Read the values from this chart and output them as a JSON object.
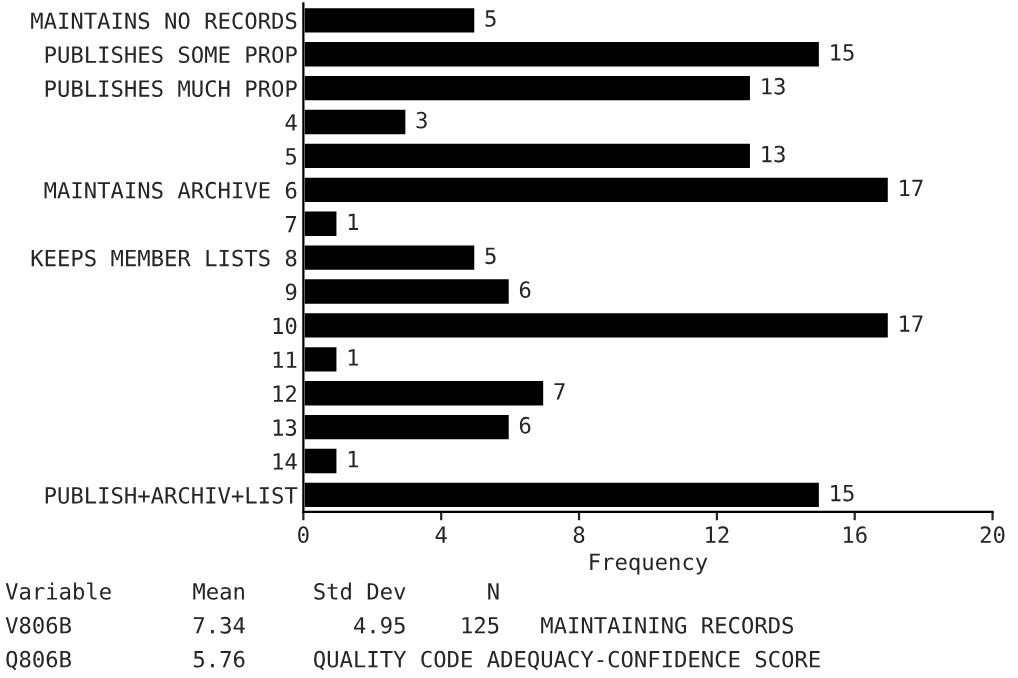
{
  "chart_data": {
    "type": "bar",
    "orientation": "horizontal",
    "categories": [
      "MAINTAINS NO RECORDS",
      "PUBLISHES SOME PROP",
      "PUBLISHES MUCH PROP",
      "4",
      "5",
      "MAINTAINS ARCHIVE 6",
      "7",
      "KEEPS MEMBER LISTS 8",
      "9",
      "10",
      "11",
      "12",
      "13",
      "14",
      "PUBLISH+ARCHIV+LIST"
    ],
    "values": [
      5,
      15,
      13,
      3,
      13,
      17,
      1,
      5,
      6,
      17,
      1,
      7,
      6,
      1,
      15
    ],
    "color": "#000000",
    "xlim": [
      0,
      20
    ],
    "xticks": [
      0,
      4,
      8,
      12,
      16,
      20
    ],
    "xlabel": "Frequency",
    "data_labels": true,
    "grid": false,
    "legend": false,
    "annotations": [
      "Variable      Mean     Std Dev      N",
      "V806B         7.34        4.95    125   MAINTAINING RECORDS",
      "Q806B         5.76     QUALITY CODE ADEQUACY-CONFIDENCE SCORE"
    ]
  }
}
